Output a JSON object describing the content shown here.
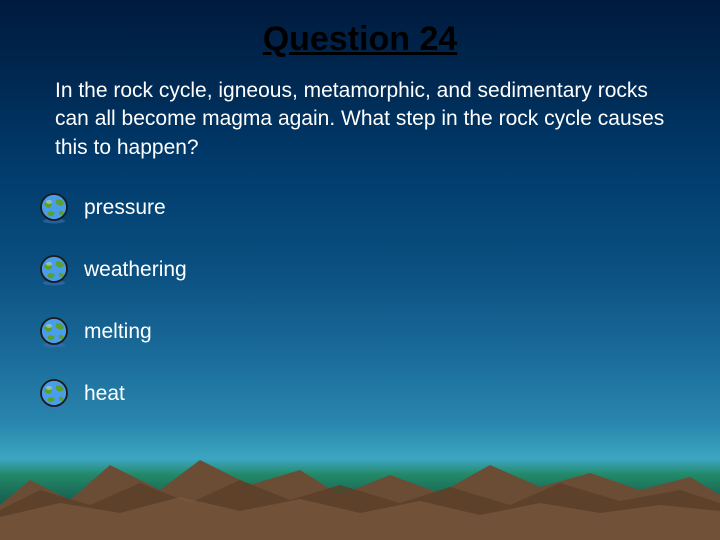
{
  "title": {
    "text": "Question 24",
    "fontsize": 34,
    "color": "#000000",
    "weight": "bold"
  },
  "question": {
    "text": "In the rock cycle, igneous, metamorphic, and sedimentary rocks can all become magma again. What step in the rock cycle causes this to happen?",
    "fontsize": 21,
    "color": "#ffffff"
  },
  "answers": [
    {
      "label": "pressure"
    },
    {
      "label": "weathering"
    },
    {
      "label": "melting"
    },
    {
      "label": "heat"
    }
  ],
  "answer_style": {
    "fontsize": 21,
    "color": "#ffffff",
    "spacing": 30
  },
  "icon": {
    "name": "globe-cartoon-icon",
    "main_color": "#4a9de8",
    "land_color": "#5aa030",
    "outline_color": "#1a1a1a",
    "base_color": "#3a72b8"
  },
  "background": {
    "sky_gradient": [
      "#001a3d",
      "#002952",
      "#003a6b",
      "#0a5080",
      "#1a6a99",
      "#2885ad",
      "#3ca5c0"
    ],
    "sea_color": "#1a6655",
    "mountain_colors": [
      "#7a5a3f",
      "#6b4d35",
      "#5a4028",
      "#4a3522"
    ]
  }
}
